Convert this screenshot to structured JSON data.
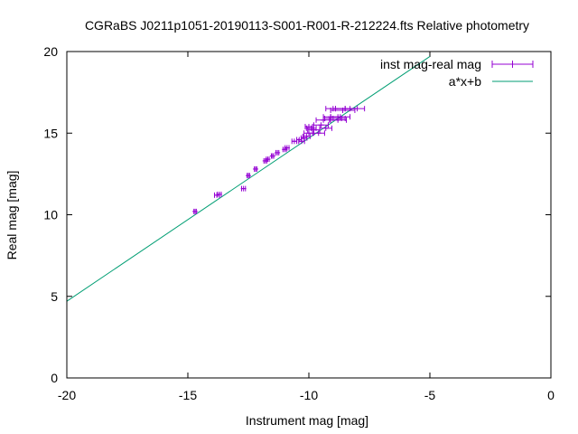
{
  "chart_data": {
    "type": "scatter",
    "title": "CGRaBS J0211p1051-20190113-S001-R001-R-212224.fts Relative photometry",
    "xlabel": "Instrument mag [mag]",
    "ylabel": "Real mag [mag]",
    "xlim": [
      -20,
      0
    ],
    "ylim": [
      0,
      20
    ],
    "xticks": [
      -20,
      -15,
      -10,
      -5,
      0
    ],
    "yticks": [
      0,
      5,
      10,
      15,
      20
    ],
    "xtick_labels": [
      "-20",
      "-15",
      "-10",
      "-5",
      "0"
    ],
    "ytick_labels": [
      "0",
      "5",
      "10",
      "15",
      "20"
    ],
    "grid": false,
    "legend_position": "top-right",
    "series": [
      {
        "name": "inst mag-real mag",
        "kind": "points-xerror",
        "color": "#9400d3",
        "points": [
          {
            "x": -14.7,
            "y": 10.2,
            "xerr": 0.05
          },
          {
            "x": -13.8,
            "y": 11.2,
            "xerr": 0.1
          },
          {
            "x": -13.7,
            "y": 11.25,
            "xerr": 0.08
          },
          {
            "x": -12.7,
            "y": 11.6,
            "xerr": 0.08
          },
          {
            "x": -12.5,
            "y": 12.4,
            "xerr": 0.05
          },
          {
            "x": -12.2,
            "y": 12.8,
            "xerr": 0.05
          },
          {
            "x": -11.8,
            "y": 13.3,
            "xerr": 0.06
          },
          {
            "x": -11.7,
            "y": 13.4,
            "xerr": 0.06
          },
          {
            "x": -11.5,
            "y": 13.6,
            "xerr": 0.05
          },
          {
            "x": -11.3,
            "y": 13.8,
            "xerr": 0.06
          },
          {
            "x": -11.0,
            "y": 14.0,
            "xerr": 0.07
          },
          {
            "x": -10.9,
            "y": 14.1,
            "xerr": 0.08
          },
          {
            "x": -10.6,
            "y": 14.5,
            "xerr": 0.1
          },
          {
            "x": -10.4,
            "y": 14.6,
            "xerr": 0.1
          },
          {
            "x": -10.3,
            "y": 14.5,
            "xerr": 0.12
          },
          {
            "x": -10.2,
            "y": 14.7,
            "xerr": 0.12
          },
          {
            "x": -10.1,
            "y": 14.8,
            "xerr": 0.15
          },
          {
            "x": -10.0,
            "y": 15.0,
            "xerr": 0.2
          },
          {
            "x": -9.9,
            "y": 15.3,
            "xerr": 0.2
          },
          {
            "x": -10.0,
            "y": 15.4,
            "xerr": 0.15
          },
          {
            "x": -9.8,
            "y": 15.2,
            "xerr": 0.25
          },
          {
            "x": -9.6,
            "y": 15.0,
            "xerr": 0.25
          },
          {
            "x": -9.5,
            "y": 15.5,
            "xerr": 0.3
          },
          {
            "x": -9.4,
            "y": 15.8,
            "xerr": 0.3
          },
          {
            "x": -9.3,
            "y": 15.3,
            "xerr": 0.25
          },
          {
            "x": -9.1,
            "y": 16.0,
            "xerr": 0.3
          },
          {
            "x": -9.0,
            "y": 15.9,
            "xerr": 0.35
          },
          {
            "x": -8.9,
            "y": 16.5,
            "xerr": 0.4
          },
          {
            "x": -8.8,
            "y": 15.8,
            "xerr": 0.35
          },
          {
            "x": -8.7,
            "y": 16.0,
            "xerr": 0.4
          },
          {
            "x": -8.6,
            "y": 16.4,
            "xerr": 0.5
          },
          {
            "x": -8.5,
            "y": 16.5,
            "xerr": 0.5
          },
          {
            "x": -8.3,
            "y": 16.5,
            "xerr": 0.6
          },
          {
            "x": -8.8,
            "y": 15.9,
            "xerr": 0.3
          }
        ]
      },
      {
        "name": "a*x+b",
        "kind": "line",
        "color": "#009e73",
        "slope": 1.0,
        "intercept": 24.7,
        "x_range": [
          -20,
          -5
        ]
      }
    ]
  }
}
